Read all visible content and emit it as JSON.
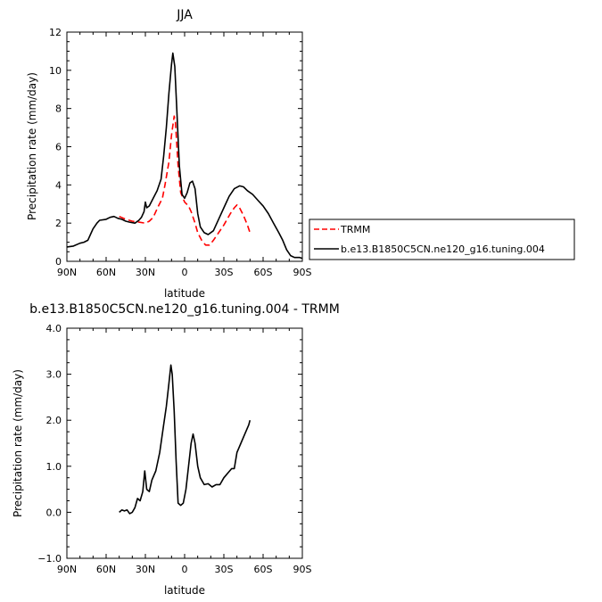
{
  "chart_data": [
    {
      "type": "line",
      "title": "JJA",
      "xlabel": "latitude",
      "ylabel": "Precipitation rate (mm/day)",
      "xlim": [
        90,
        -90
      ],
      "ylim": [
        0,
        12
      ],
      "x_tick_values": [
        90,
        60,
        30,
        0,
        -30,
        -60,
        -90
      ],
      "x_tick_labels": [
        "90N",
        "60N",
        "30N",
        "0",
        "30S",
        "60S",
        "90S"
      ],
      "y_tick_values": [
        0,
        2,
        4,
        6,
        8,
        10,
        12
      ],
      "y_tick_labels": [
        "0",
        "2",
        "4",
        "6",
        "8",
        "10",
        "12"
      ],
      "legend_placement": "right",
      "series": [
        {
          "name": "TRMM",
          "color": "#ff0000",
          "dash": "dashed",
          "points": [
            [
              50,
              2.35
            ],
            [
              45,
              2.2
            ],
            [
              40,
              2.1
            ],
            [
              35,
              2.05
            ],
            [
              30,
              2.0
            ],
            [
              27,
              2.1
            ],
            [
              24,
              2.3
            ],
            [
              22,
              2.6
            ],
            [
              20,
              2.9
            ],
            [
              17,
              3.3
            ],
            [
              15,
              4.0
            ],
            [
              12,
              5.2
            ],
            [
              10,
              6.6
            ],
            [
              8,
              7.6
            ],
            [
              7,
              7.3
            ],
            [
              5,
              5.0
            ],
            [
              3,
              3.6
            ],
            [
              0,
              3.1
            ],
            [
              -3,
              2.9
            ],
            [
              -5,
              2.6
            ],
            [
              -8,
              2.0
            ],
            [
              -10,
              1.5
            ],
            [
              -13,
              1.1
            ],
            [
              -16,
              0.85
            ],
            [
              -19,
              0.85
            ],
            [
              -22,
              1.1
            ],
            [
              -25,
              1.4
            ],
            [
              -30,
              1.9
            ],
            [
              -35,
              2.5
            ],
            [
              -38,
              2.8
            ],
            [
              -40,
              2.95
            ],
            [
              -42,
              2.8
            ],
            [
              -45,
              2.4
            ],
            [
              -48,
              1.9
            ],
            [
              -50,
              1.5
            ]
          ]
        },
        {
          "name": "b.e13.B1850C5CN.ne120_g16.tuning.004",
          "color": "#000000",
          "dash": "solid",
          "points": [
            [
              90,
              0.75
            ],
            [
              85,
              0.8
            ],
            [
              80,
              0.95
            ],
            [
              77,
              1.0
            ],
            [
              74,
              1.1
            ],
            [
              72,
              1.4
            ],
            [
              70,
              1.7
            ],
            [
              67,
              2.0
            ],
            [
              65,
              2.15
            ],
            [
              60,
              2.2
            ],
            [
              57,
              2.3
            ],
            [
              54,
              2.35
            ],
            [
              51,
              2.25
            ],
            [
              48,
              2.2
            ],
            [
              45,
              2.1
            ],
            [
              42,
              2.05
            ],
            [
              38,
              2.0
            ],
            [
              35,
              2.15
            ],
            [
              33,
              2.3
            ],
            [
              31,
              2.6
            ],
            [
              30,
              3.1
            ],
            [
              29,
              2.8
            ],
            [
              27,
              2.9
            ],
            [
              24,
              3.3
            ],
            [
              21,
              3.7
            ],
            [
              18,
              4.3
            ],
            [
              16,
              5.5
            ],
            [
              14,
              7.0
            ],
            [
              12,
              8.8
            ],
            [
              10,
              10.3
            ],
            [
              9,
              10.9
            ],
            [
              7.5,
              10.2
            ],
            [
              6,
              8.0
            ],
            [
              4,
              5.0
            ],
            [
              2,
              3.5
            ],
            [
              0,
              3.3
            ],
            [
              -2,
              3.6
            ],
            [
              -4,
              4.1
            ],
            [
              -6,
              4.2
            ],
            [
              -8,
              3.8
            ],
            [
              -10,
              2.5
            ],
            [
              -12,
              1.8
            ],
            [
              -15,
              1.5
            ],
            [
              -18,
              1.4
            ],
            [
              -22,
              1.6
            ],
            [
              -26,
              2.2
            ],
            [
              -30,
              2.8
            ],
            [
              -34,
              3.4
            ],
            [
              -38,
              3.8
            ],
            [
              -42,
              3.95
            ],
            [
              -45,
              3.9
            ],
            [
              -48,
              3.7
            ],
            [
              -52,
              3.5
            ],
            [
              -56,
              3.2
            ],
            [
              -60,
              2.9
            ],
            [
              -64,
              2.5
            ],
            [
              -68,
              2.0
            ],
            [
              -72,
              1.5
            ],
            [
              -75,
              1.1
            ],
            [
              -78,
              0.6
            ],
            [
              -81,
              0.3
            ],
            [
              -84,
              0.2
            ],
            [
              -88,
              0.2
            ],
            [
              -90,
              0.15
            ]
          ]
        }
      ]
    },
    {
      "type": "line",
      "title": "b.e13.B1850C5CN.ne120_g16.tuning.004 - TRMM",
      "xlabel": "latitude",
      "ylabel": "Precipitation rate (mm/day)",
      "xlim": [
        90,
        -90
      ],
      "ylim": [
        -1,
        4
      ],
      "x_tick_values": [
        90,
        60,
        30,
        0,
        -30,
        -60,
        -90
      ],
      "x_tick_labels": [
        "90N",
        "60N",
        "30N",
        "0",
        "30S",
        "60S",
        "90S"
      ],
      "y_tick_values": [
        -1,
        0,
        1,
        2,
        3,
        4
      ],
      "y_tick_labels": [
        "−1.0",
        "0.0",
        "1.0",
        "2.0",
        "3.0",
        "4.0"
      ],
      "series": [
        {
          "color": "#000000",
          "dash": "solid",
          "points": [
            [
              50,
              0.0
            ],
            [
              48,
              0.05
            ],
            [
              46,
              0.03
            ],
            [
              44,
              0.05
            ],
            [
              42,
              -0.03
            ],
            [
              40,
              0.0
            ],
            [
              38,
              0.1
            ],
            [
              36,
              0.3
            ],
            [
              34,
              0.25
            ],
            [
              32,
              0.45
            ],
            [
              30.5,
              0.9
            ],
            [
              29,
              0.5
            ],
            [
              27,
              0.45
            ],
            [
              25,
              0.7
            ],
            [
              22,
              0.9
            ],
            [
              19,
              1.3
            ],
            [
              16,
              1.9
            ],
            [
              14,
              2.3
            ],
            [
              12,
              2.8
            ],
            [
              10.5,
              3.2
            ],
            [
              9.5,
              3.0
            ],
            [
              8,
              2.2
            ],
            [
              6.5,
              1.1
            ],
            [
              5,
              0.2
            ],
            [
              3,
              0.15
            ],
            [
              1,
              0.2
            ],
            [
              -1,
              0.5
            ],
            [
              -3,
              1.0
            ],
            [
              -5,
              1.5
            ],
            [
              -6.5,
              1.7
            ],
            [
              -8,
              1.5
            ],
            [
              -10,
              1.0
            ],
            [
              -12,
              0.75
            ],
            [
              -15,
              0.6
            ],
            [
              -18,
              0.62
            ],
            [
              -21,
              0.55
            ],
            [
              -24,
              0.6
            ],
            [
              -27,
              0.6
            ],
            [
              -30,
              0.75
            ],
            [
              -33,
              0.85
            ],
            [
              -36,
              0.95
            ],
            [
              -38,
              0.95
            ],
            [
              -40,
              1.3
            ],
            [
              -43,
              1.5
            ],
            [
              -46,
              1.7
            ],
            [
              -49,
              1.9
            ],
            [
              -50,
              2.0
            ]
          ]
        }
      ]
    }
  ]
}
